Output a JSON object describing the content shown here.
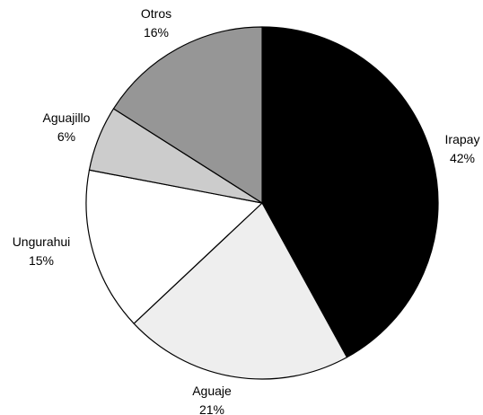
{
  "chart_data": {
    "type": "pie",
    "title": "",
    "slices": [
      {
        "name": "Irapay",
        "value": 42,
        "label": "Irapay",
        "pct_label": "42%",
        "color": "#000000"
      },
      {
        "name": "Aguaje",
        "value": 21,
        "label": "Aguaje",
        "pct_label": "21%",
        "color": "#eeeeee"
      },
      {
        "name": "Ungurahui",
        "value": 15,
        "label": "Ungurahui",
        "pct_label": "15%",
        "color": "#ffffff"
      },
      {
        "name": "Aguajillo",
        "value": 6,
        "label": "Aguajillo",
        "pct_label": "6%",
        "color": "#cccccc"
      },
      {
        "name": "Otros",
        "value": 16,
        "label": "Otros",
        "pct_label": "16%",
        "color": "#969696"
      }
    ],
    "start_angle": "12 o'clock",
    "direction": "clockwise",
    "legend": "none"
  }
}
